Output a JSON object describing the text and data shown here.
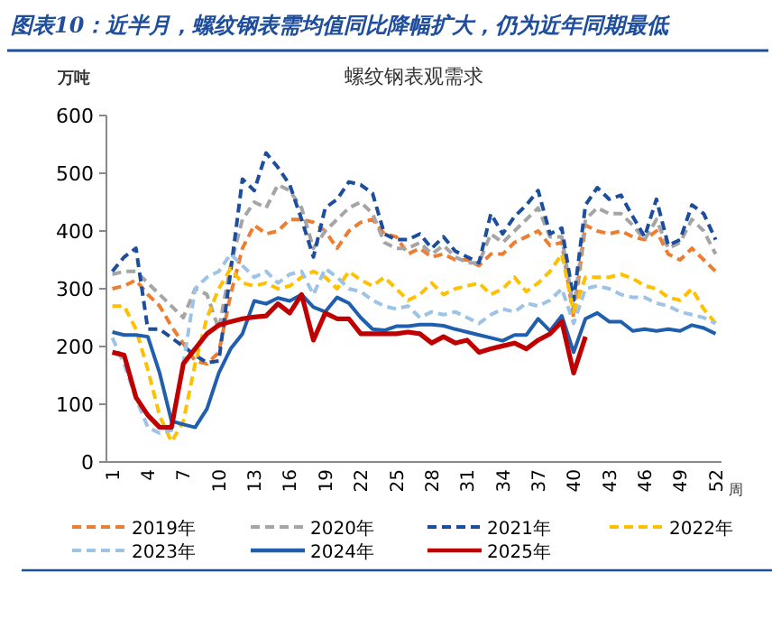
{
  "chart_data": {
    "type": "line",
    "title": "图表10：近半月，螺纹钢表需均值同比降幅扩大，仍为近年同期最低",
    "subtitle": "螺纹钢表观需求",
    "ylabel": "万吨",
    "xlabel": "周",
    "x": [
      1,
      2,
      3,
      4,
      5,
      6,
      7,
      8,
      9,
      10,
      11,
      12,
      13,
      14,
      15,
      16,
      17,
      18,
      19,
      20,
      21,
      22,
      23,
      24,
      25,
      26,
      27,
      28,
      29,
      30,
      31,
      32,
      33,
      34,
      35,
      36,
      37,
      38,
      39,
      40,
      41,
      42,
      43,
      44,
      45,
      46,
      47,
      48,
      49,
      50,
      51,
      52
    ],
    "xlim": [
      0.5,
      52.5
    ],
    "xticks": [
      1,
      4,
      7,
      10,
      13,
      16,
      19,
      22,
      25,
      28,
      31,
      34,
      37,
      40,
      43,
      46,
      49,
      52
    ],
    "ylim": [
      0,
      600
    ],
    "yticks": [
      0,
      100,
      200,
      300,
      400,
      500,
      600
    ],
    "grid": false,
    "legend": "bottom",
    "marker": "none",
    "series": [
      {
        "name": "2019年",
        "color": "#ed7d31",
        "line_style": "dashed",
        "values": [
          300,
          305,
          315,
          290,
          270,
          235,
          205,
          175,
          170,
          190,
          290,
          370,
          410,
          395,
          400,
          420,
          420,
          415,
          400,
          370,
          400,
          415,
          420,
          395,
          390,
          360,
          370,
          355,
          360,
          350,
          350,
          340,
          360,
          360,
          380,
          390,
          400,
          375,
          380,
          250,
          410,
          400,
          395,
          400,
          390,
          385,
          400,
          360,
          350,
          370,
          350,
          330
        ]
      },
      {
        "name": "2020年",
        "color": "#a5a5a5",
        "line_style": "dashed",
        "values": [
          325,
          330,
          330,
          310,
          290,
          270,
          250,
          300,
          290,
          230,
          340,
          420,
          450,
          440,
          480,
          470,
          440,
          370,
          400,
          420,
          440,
          450,
          430,
          380,
          370,
          370,
          380,
          360,
          375,
          355,
          345,
          345,
          395,
          380,
          400,
          420,
          440,
          390,
          390,
          265,
          420,
          440,
          430,
          430,
          410,
          385,
          420,
          370,
          380,
          420,
          400,
          360
        ]
      },
      {
        "name": "2021年",
        "color": "#1c4e9d",
        "line_style": "dashed",
        "values": [
          330,
          355,
          370,
          230,
          230,
          215,
          200,
          185,
          172,
          175,
          330,
          490,
          470,
          535,
          510,
          480,
          420,
          355,
          440,
          455,
          485,
          480,
          465,
          395,
          385,
          385,
          395,
          370,
          390,
          365,
          355,
          345,
          430,
          395,
          425,
          445,
          470,
          395,
          405,
          280,
          445,
          475,
          455,
          462,
          425,
          390,
          455,
          375,
          385,
          445,
          430,
          385
        ]
      },
      {
        "name": "2022年",
        "color": "#ffc000",
        "line_style": "dashed",
        "values": [
          270,
          270,
          230,
          160,
          80,
          35,
          70,
          170,
          250,
          300,
          335,
          310,
          305,
          310,
          300,
          305,
          320,
          330,
          320,
          300,
          330,
          315,
          305,
          320,
          300,
          280,
          290,
          310,
          290,
          300,
          305,
          310,
          290,
          300,
          320,
          295,
          310,
          330,
          360,
          260,
          320,
          320,
          320,
          325,
          318,
          305,
          300,
          285,
          280,
          300,
          265,
          240
        ]
      },
      {
        "name": "2023年",
        "color": "#9dc3e6",
        "line_style": "dashed",
        "values": [
          215,
          170,
          110,
          60,
          50,
          55,
          170,
          300,
          320,
          330,
          360,
          340,
          320,
          330,
          310,
          325,
          330,
          290,
          335,
          320,
          300,
          295,
          280,
          270,
          265,
          270,
          250,
          260,
          255,
          260,
          250,
          240,
          255,
          265,
          260,
          275,
          270,
          280,
          300,
          240,
          300,
          305,
          300,
          290,
          285,
          285,
          275,
          270,
          260,
          255,
          250,
          240
        ]
      },
      {
        "name": "2024年",
        "color": "#1f5fae",
        "line_style": "solid",
        "values": [
          225,
          220,
          220,
          217,
          154,
          71,
          65,
          60,
          92,
          154,
          196,
          222,
          279,
          274,
          284,
          279,
          290,
          268,
          260,
          285,
          275,
          250,
          230,
          228,
          235,
          235,
          238,
          238,
          236,
          230,
          225,
          220,
          215,
          210,
          220,
          220,
          248,
          227,
          253,
          190,
          248,
          258,
          243,
          243,
          227,
          230,
          227,
          230,
          227,
          237,
          232,
          222
        ]
      },
      {
        "name": "2025年",
        "color": "#c00000",
        "line_style": "solid",
        "values": [
          190,
          185,
          112,
          81,
          60,
          60,
          170,
          196,
          222,
          237,
          243,
          248,
          251,
          253,
          274,
          258,
          290,
          211,
          258,
          248,
          248,
          222,
          222,
          222,
          222,
          225,
          222,
          206,
          217,
          206,
          211,
          190,
          196,
          201,
          206,
          196,
          211,
          222,
          243,
          154,
          217,
          null,
          null,
          null,
          null,
          null,
          null,
          null,
          null,
          null,
          null,
          null
        ]
      }
    ]
  }
}
